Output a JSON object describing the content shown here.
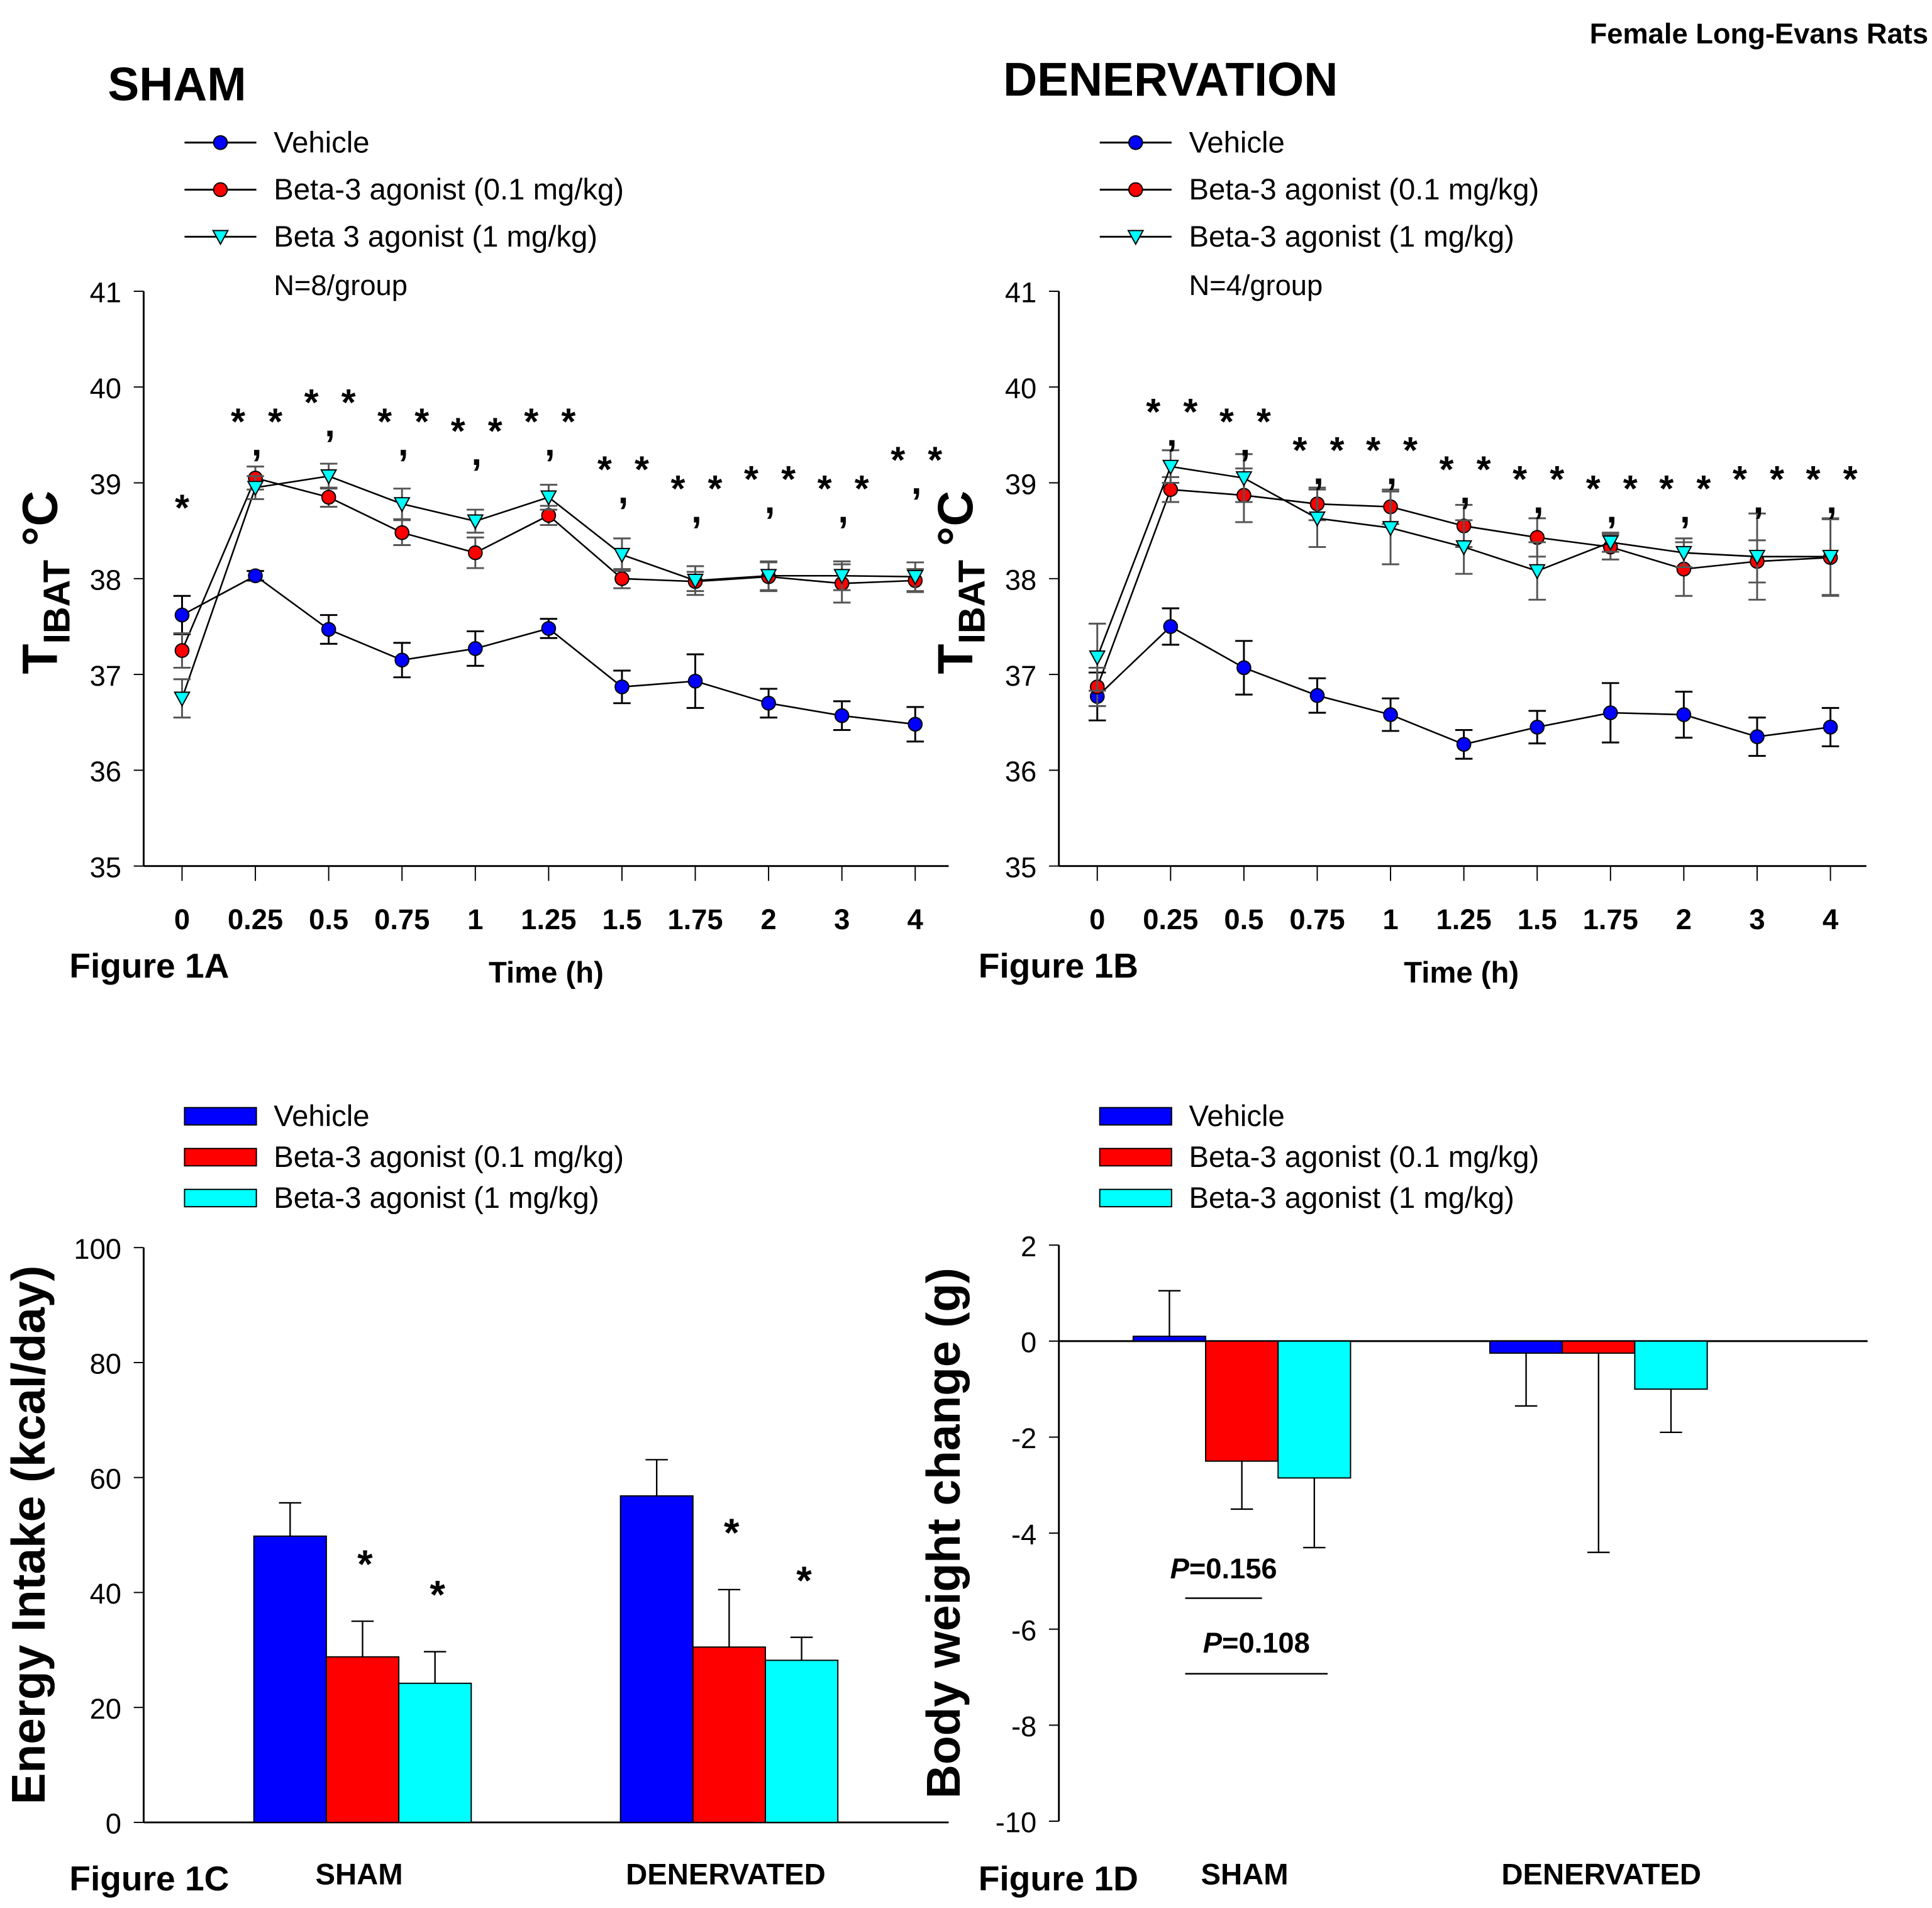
{
  "header": {
    "species": "Female Long-Evans Rats"
  },
  "colors": {
    "vehicle": "#0000ff",
    "low": "#ff0000",
    "high": "#00ffff",
    "axis": "#000000",
    "error": "#000000"
  },
  "chart_data": [
    {
      "id": "1A",
      "type": "line",
      "title": "SHAM",
      "figure_label": "Figure 1A",
      "xlabel": "Time (h)",
      "ylabel": "TIBAT °C",
      "ylabel_main": "T",
      "ylabel_sub": "IBAT",
      "ylabel_unit": " °C",
      "ylim": [
        35,
        41
      ],
      "yticks": [
        35,
        36,
        37,
        38,
        39,
        40,
        41
      ],
      "categories": [
        "0",
        "0.25",
        "0.5",
        "0.75",
        "1",
        "1.25",
        "1.5",
        "1.75",
        "2",
        "3",
        "4"
      ],
      "n_note": "N=8/group",
      "series": [
        {
          "name": "Vehicle",
          "color": "#0000ff",
          "marker": "circle",
          "values": [
            37.62,
            38.03,
            37.47,
            37.15,
            37.27,
            37.48,
            36.87,
            36.93,
            36.7,
            36.57,
            36.48
          ],
          "errors": [
            0.2,
            0.05,
            0.15,
            0.18,
            0.18,
            0.1,
            0.17,
            0.28,
            0.15,
            0.15,
            0.18
          ]
        },
        {
          "name": "Beta-3 agonist (0.1 mg/kg)",
          "color": "#ff0000",
          "marker": "circle",
          "values": [
            37.25,
            39.05,
            38.85,
            38.48,
            38.27,
            38.66,
            38.0,
            37.97,
            38.02,
            37.95,
            37.98
          ],
          "errors": [
            0.18,
            0.12,
            0.1,
            0.13,
            0.16,
            0.1,
            0.1,
            0.1,
            0.15,
            0.2,
            0.12
          ]
        },
        {
          "name": "Beta 3 agonist (1 mg/kg)",
          "color": "#00ffff",
          "marker": "triangle-down",
          "values": [
            36.75,
            38.95,
            39.07,
            38.78,
            38.6,
            38.85,
            38.25,
            37.98,
            38.03,
            38.03,
            38.02
          ],
          "errors": [
            0.2,
            0.12,
            0.13,
            0.16,
            0.12,
            0.13,
            0.17,
            0.15,
            0.15,
            0.15,
            0.15
          ]
        }
      ],
      "significance": [
        "*",
        "*,*",
        "*,*",
        "*,*",
        "*,*",
        "*,*",
        "*,*",
        "*,*",
        "*,*",
        "*,*",
        "*,*"
      ],
      "sig_levels": [
        38.8,
        39.7,
        39.9,
        39.7,
        39.6,
        39.7,
        39.2,
        39.0,
        39.1,
        39.0,
        39.3
      ]
    },
    {
      "id": "1B",
      "type": "line",
      "title": "DENERVATION",
      "figure_label": "Figure 1B",
      "xlabel": "Time (h)",
      "ylabel": "TIBAT °C",
      "ylabel_main": "T",
      "ylabel_sub": "IBAT",
      "ylabel_unit": " °C",
      "ylim": [
        35,
        41
      ],
      "yticks": [
        35,
        36,
        37,
        38,
        39,
        40,
        41
      ],
      "categories": [
        "0",
        "0.25",
        "0.5",
        "0.75",
        "1",
        "1.25",
        "1.5",
        "1.75",
        "2",
        "3",
        "4"
      ],
      "n_note": "N=4/group",
      "series": [
        {
          "name": "Vehicle",
          "color": "#0000ff",
          "marker": "circle",
          "values": [
            36.77,
            37.5,
            37.07,
            36.78,
            36.58,
            36.27,
            36.45,
            36.6,
            36.58,
            36.35,
            36.45
          ],
          "errors": [
            0.25,
            0.19,
            0.28,
            0.18,
            0.17,
            0.15,
            0.17,
            0.31,
            0.24,
            0.2,
            0.2
          ]
        },
        {
          "name": "Beta-3 agonist (0.1 mg/kg)",
          "color": "#ff0000",
          "marker": "circle",
          "values": [
            36.87,
            38.93,
            38.87,
            38.78,
            38.75,
            38.55,
            38.43,
            38.33,
            38.1,
            38.18,
            38.22
          ],
          "errors": [
            0.2,
            0.13,
            0.28,
            0.17,
            0.18,
            0.22,
            0.2,
            0.13,
            0.28,
            0.22,
            0.4
          ]
        },
        {
          "name": "Beta-3 agonist (1 mg/kg)",
          "color": "#00ffff",
          "marker": "triangle-down",
          "values": [
            37.18,
            39.17,
            39.05,
            38.63,
            38.53,
            38.33,
            38.08,
            38.38,
            38.27,
            38.23,
            38.23
          ],
          "errors": [
            0.35,
            0.17,
            0.25,
            0.3,
            0.38,
            0.28,
            0.3,
            0.1,
            0.15,
            0.45,
            0.4
          ]
        }
      ],
      "significance": [
        "",
        "*,*",
        "*,*",
        "*,*",
        "*,*",
        "*,*",
        "*,*",
        "*,*",
        "*,*",
        "*,*",
        "*,*"
      ],
      "sig_levels": [
        0,
        39.8,
        39.7,
        39.4,
        39.4,
        39.2,
        39.1,
        39.0,
        39.0,
        39.1,
        39.1
      ]
    },
    {
      "id": "1C",
      "type": "bar",
      "figure_label": "Figure 1C",
      "ylabel": "Energy Intake (kcal/day)",
      "ylim": [
        0,
        100
      ],
      "yticks": [
        0,
        20,
        40,
        60,
        80,
        100
      ],
      "categories": [
        "SHAM",
        "DENERVATED"
      ],
      "series": [
        {
          "name": "Vehicle",
          "color": "#0000ff",
          "values": [
            49.8,
            56.8
          ],
          "errors": [
            5.8,
            6.3
          ]
        },
        {
          "name": "Beta-3 agonist (0.1 mg/kg)",
          "color": "#ff0000",
          "values": [
            28.8,
            30.5
          ],
          "errors": [
            6.2,
            10.0
          ]
        },
        {
          "name": "Beta-3 agonist (1 mg/kg)",
          "color": "#00ffff",
          "values": [
            24.2,
            28.2
          ],
          "errors": [
            5.5,
            4.0
          ]
        }
      ],
      "significance": [
        [
          "",
          "*",
          "*"
        ],
        [
          "",
          "*",
          "*"
        ]
      ]
    },
    {
      "id": "1D",
      "type": "bar",
      "figure_label": "Figure 1D",
      "ylabel": "Body weight change (g)",
      "ylim": [
        -10,
        2
      ],
      "yticks": [
        -10,
        -8,
        -6,
        -4,
        -2,
        0,
        2
      ],
      "categories": [
        "SHAM",
        "DENERVATED"
      ],
      "series": [
        {
          "name": "Vehicle",
          "color": "#0000ff",
          "values": [
            0.1,
            -0.25
          ],
          "errors": [
            0.95,
            1.1
          ]
        },
        {
          "name": "Beta-3 agonist (0.1 mg/kg)",
          "color": "#ff0000",
          "values": [
            -2.5,
            -0.25
          ],
          "errors": [
            1.0,
            4.15
          ]
        },
        {
          "name": "Beta-3 agonist (1 mg/kg)",
          "color": "#00ffff",
          "values": [
            -2.85,
            -1.0
          ],
          "errors": [
            1.45,
            0.9
          ]
        }
      ],
      "annotations": [
        {
          "label": "P",
          "value": "=0.156",
          "compare": [
            "Vehicle",
            "Beta-3 agonist (0.1 mg/kg)"
          ]
        },
        {
          "label": "P",
          "value": "=0.108",
          "compare": [
            "Vehicle",
            "Beta-3 agonist (1 mg/kg)"
          ]
        }
      ]
    }
  ]
}
